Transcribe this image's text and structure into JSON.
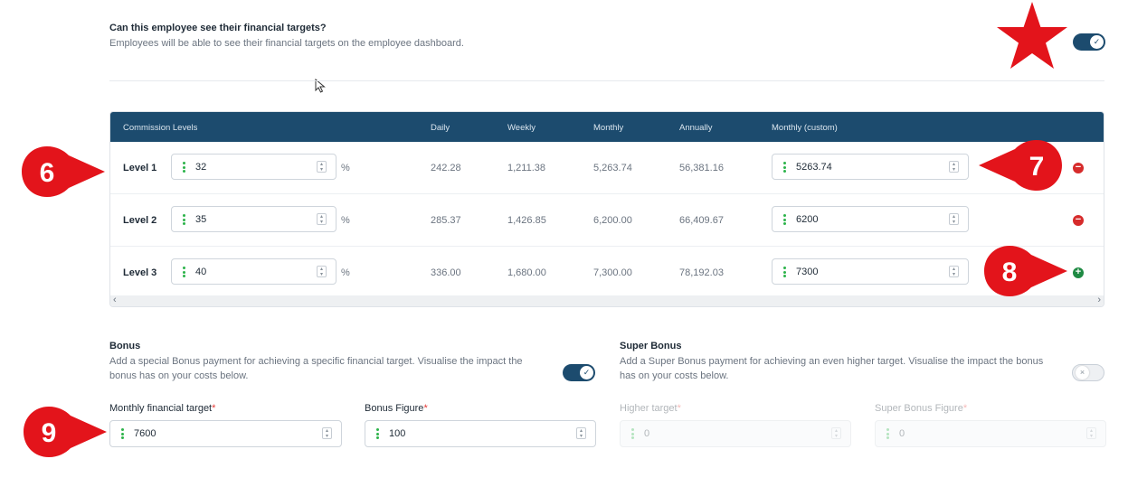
{
  "visibility": {
    "question": "Can this employee see their financial targets?",
    "description": "Employees will be able to see their financial targets on the employee dashboard.",
    "toggle_state": "on"
  },
  "table": {
    "headers": {
      "levels": "Commission Levels",
      "daily": "Daily",
      "weekly": "Weekly",
      "monthly": "Monthly",
      "annually": "Annually",
      "custom": "Monthly (custom)"
    },
    "unit": "%",
    "rows": [
      {
        "label": "Level 1",
        "percent": "32",
        "daily": "242.28",
        "weekly": "1,211.38",
        "monthly": "5,263.74",
        "annually": "56,381.16",
        "custom": "5263.74",
        "action": "remove"
      },
      {
        "label": "Level 2",
        "percent": "35",
        "daily": "285.37",
        "weekly": "1,426.85",
        "monthly": "6,200.00",
        "annually": "66,409.67",
        "custom": "6200",
        "action": "remove"
      },
      {
        "label": "Level 3",
        "percent": "40",
        "daily": "336.00",
        "weekly": "1,680.00",
        "monthly": "7,300.00",
        "annually": "78,192.03",
        "custom": "7300",
        "action": "add"
      }
    ]
  },
  "bonus": {
    "title": "Bonus",
    "description": "Add a special Bonus payment for achieving a specific financial target. Visualise the impact the bonus has on your costs below.",
    "toggle_state": "on",
    "target_label": "Monthly financial target",
    "target_value": "7600",
    "figure_label": "Bonus Figure",
    "figure_value": "100",
    "required_mark": "*"
  },
  "super_bonus": {
    "title": "Super Bonus",
    "description": "Add a Super Bonus payment for achieving an even higher target. Visualise the impact the bonus has on your costs below.",
    "toggle_state": "off",
    "target_label": "Higher target",
    "target_value": "0",
    "figure_label": "Super Bonus Figure",
    "figure_value": "0",
    "required_mark": "*"
  },
  "markers": {
    "m6": "6",
    "m7": "7",
    "m8": "8",
    "m9": "9",
    "accent_color": "#e3141b"
  }
}
